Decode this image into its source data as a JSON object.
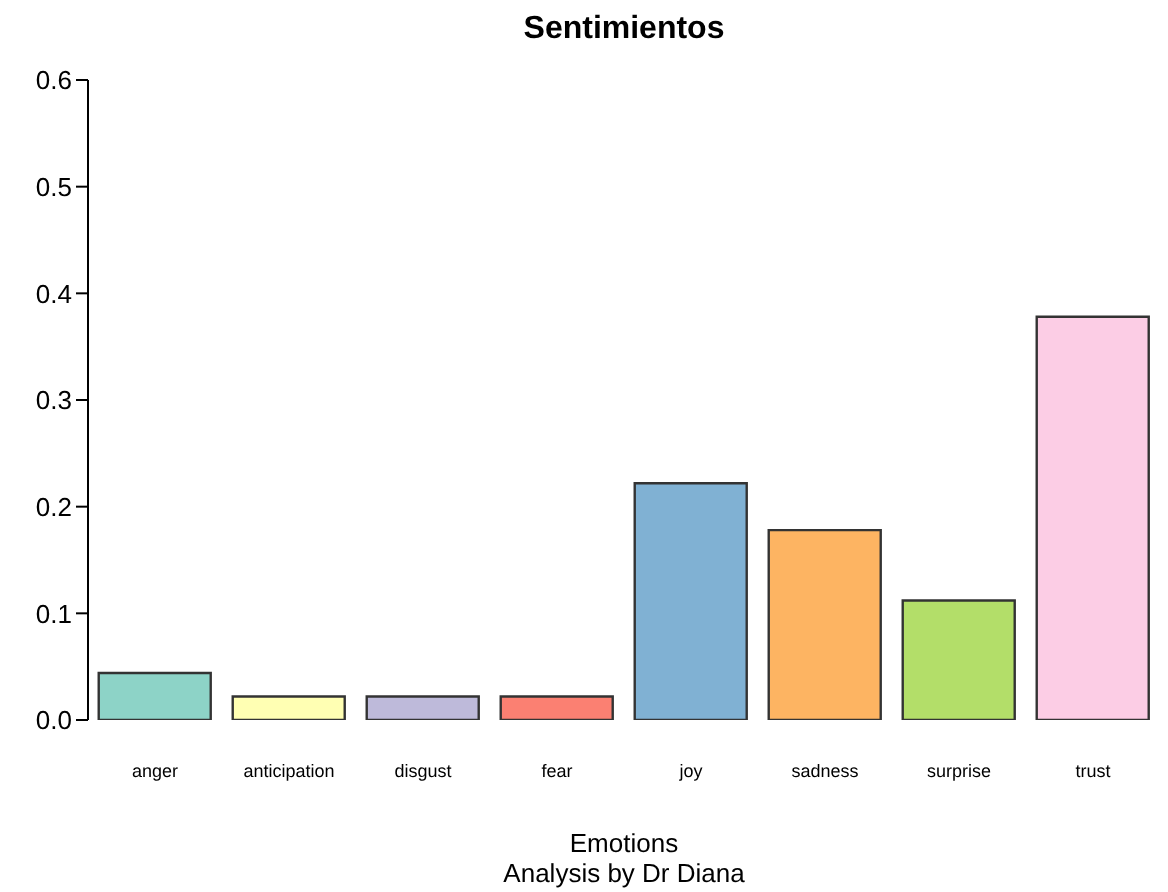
{
  "chart_data": {
    "type": "bar",
    "title": "Sentimientos",
    "xlabel": "Emotions",
    "annotations": [
      "Analysis by Dr Diana"
    ],
    "categories": [
      "anger",
      "anticipation",
      "disgust",
      "fear",
      "joy",
      "sadness",
      "surprise",
      "trust"
    ],
    "values": [
      0.044,
      0.022,
      0.022,
      0.022,
      0.222,
      0.178,
      0.112,
      0.378
    ],
    "colors": [
      "#8dd3c7",
      "#ffffb3",
      "#bebada",
      "#fb8072",
      "#80b1d3",
      "#fdb462",
      "#b3de69",
      "#fccde5"
    ],
    "ylim": [
      0,
      0.6
    ],
    "yticks": [
      {
        "value": 0,
        "label": "0.0"
      },
      0.1,
      0.2,
      0.3,
      0.4,
      0.5,
      0.6
    ],
    "grid": false
  }
}
